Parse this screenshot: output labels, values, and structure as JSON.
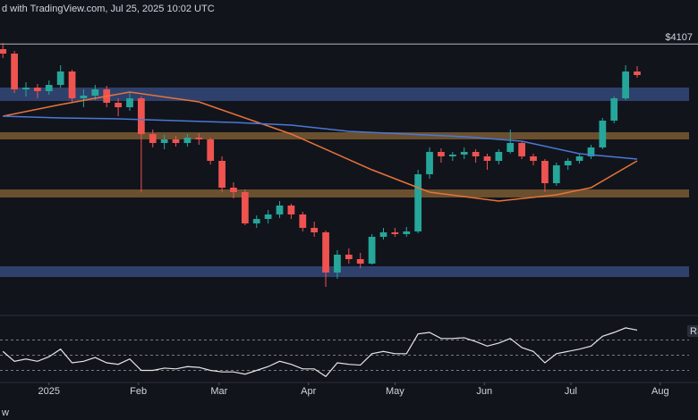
{
  "chart_data": {
    "type": "candlestick",
    "header": "d with TradingView.com, Jul 25, 2025 10:02 UTC",
    "footer": "w",
    "up_color": "#26a69a",
    "down_color": "#ef5350",
    "x": [
      -16,
      -12,
      -8,
      -4,
      0,
      4,
      8,
      12,
      16,
      20,
      24,
      28,
      32,
      36,
      40,
      44,
      48,
      52,
      56,
      60,
      64,
      68,
      72,
      76,
      80,
      84,
      88,
      92,
      96,
      100,
      104,
      108,
      112,
      116,
      120,
      124,
      128,
      132,
      136,
      140,
      144,
      148,
      152,
      156,
      160,
      164,
      168,
      172,
      176,
      180,
      184,
      188,
      192,
      196,
      200,
      204
    ],
    "candles": [
      [
        4050,
        4120,
        3950,
        4000
      ],
      [
        4000,
        4030,
        3560,
        3600
      ],
      [
        3600,
        3680,
        3520,
        3620
      ],
      [
        3620,
        3660,
        3500,
        3580
      ],
      [
        3580,
        3700,
        3540,
        3650
      ],
      [
        3650,
        3870,
        3620,
        3800
      ],
      [
        3800,
        3820,
        3450,
        3500
      ],
      [
        3500,
        3600,
        3400,
        3530
      ],
      [
        3530,
        3650,
        3480,
        3600
      ],
      [
        3600,
        3640,
        3400,
        3450
      ],
      [
        3450,
        3500,
        3300,
        3400
      ],
      [
        3400,
        3560,
        3360,
        3500
      ],
      [
        3500,
        3520,
        2450,
        3100
      ],
      [
        3100,
        3150,
        2950,
        3000
      ],
      [
        3000,
        3090,
        2930,
        3040
      ],
      [
        3040,
        3080,
        2960,
        3000
      ],
      [
        3000,
        3100,
        2960,
        3060
      ],
      [
        3060,
        3110,
        2980,
        3040
      ],
      [
        3040,
        3060,
        2760,
        2800
      ],
      [
        2800,
        2850,
        2450,
        2500
      ],
      [
        2500,
        2560,
        2380,
        2450
      ],
      [
        2450,
        2480,
        2080,
        2100
      ],
      [
        2100,
        2190,
        2050,
        2150
      ],
      [
        2150,
        2250,
        2100,
        2200
      ],
      [
        2200,
        2350,
        2160,
        2300
      ],
      [
        2300,
        2320,
        2150,
        2200
      ],
      [
        2200,
        2230,
        2010,
        2050
      ],
      [
        2050,
        2120,
        1950,
        2000
      ],
      [
        2000,
        2020,
        1390,
        1550
      ],
      [
        1550,
        1800,
        1480,
        1750
      ],
      [
        1750,
        1820,
        1650,
        1700
      ],
      [
        1700,
        1770,
        1600,
        1650
      ],
      [
        1650,
        1980,
        1640,
        1950
      ],
      [
        1950,
        2050,
        1920,
        2000
      ],
      [
        2000,
        2050,
        1950,
        1980
      ],
      [
        1980,
        2060,
        1950,
        2010
      ],
      [
        2010,
        2700,
        1990,
        2650
      ],
      [
        2650,
        2950,
        2600,
        2900
      ],
      [
        2900,
        2940,
        2780,
        2850
      ],
      [
        2850,
        2900,
        2800,
        2870
      ],
      [
        2870,
        2950,
        2820,
        2900
      ],
      [
        2900,
        2930,
        2780,
        2850
      ],
      [
        2850,
        2880,
        2700,
        2800
      ],
      [
        2800,
        2930,
        2760,
        2900
      ],
      [
        2900,
        3150,
        2880,
        3000
      ],
      [
        3000,
        3020,
        2820,
        2850
      ],
      [
        2850,
        2880,
        2750,
        2800
      ],
      [
        2800,
        2820,
        2450,
        2550
      ],
      [
        2550,
        2780,
        2520,
        2750
      ],
      [
        2750,
        2830,
        2700,
        2800
      ],
      [
        2800,
        2880,
        2770,
        2850
      ],
      [
        2850,
        2980,
        2820,
        2950
      ],
      [
        2950,
        3280,
        2930,
        3250
      ],
      [
        3250,
        3520,
        3220,
        3500
      ],
      [
        3500,
        3870,
        3480,
        3800
      ],
      [
        3800,
        3860,
        3730,
        3760
      ]
    ],
    "xlim": [
      -17,
      222
    ],
    "xticks": [
      {
        "value": 0,
        "label": "2025"
      },
      {
        "value": 31,
        "label": "Feb"
      },
      {
        "value": 59,
        "label": "Mar"
      },
      {
        "value": 90,
        "label": "Apr"
      },
      {
        "value": 120,
        "label": "May"
      },
      {
        "value": 151,
        "label": "Jun"
      },
      {
        "value": 181,
        "label": "Jul"
      },
      {
        "value": 212,
        "label": "Aug"
      }
    ],
    "ylim": [
      1200,
      4400
    ],
    "level": {
      "value": 4107,
      "label": "$4107"
    },
    "zones": [
      {
        "from": 3470,
        "to": 3620,
        "color": "#34497a"
      },
      {
        "from": 3040,
        "to": 3120,
        "color": "#7a5a32"
      },
      {
        "from": 2390,
        "to": 2480,
        "color": "#7a5a32"
      },
      {
        "from": 1500,
        "to": 1620,
        "color": "#34497a"
      }
    ],
    "overlays": [
      {
        "color": "#e8733a",
        "x": [
          -16,
          4,
          28,
          52,
          84,
          112,
          132,
          156,
          176,
          188,
          204
        ],
        "values": [
          3300,
          3430,
          3570,
          3460,
          3100,
          2700,
          2450,
          2350,
          2420,
          2500,
          2800
        ]
      },
      {
        "color": "#4a78d8",
        "x": [
          -16,
          4,
          24,
          44,
          64,
          84,
          104,
          124,
          144,
          164,
          184,
          204
        ],
        "values": [
          3300,
          3280,
          3270,
          3250,
          3230,
          3200,
          3130,
          3100,
          3070,
          3020,
          2880,
          2820
        ]
      }
    ],
    "rsi": {
      "label": "RS",
      "color": "#e6e6e6",
      "ylim": [
        0,
        100
      ],
      "levels": [
        70,
        50,
        30
      ],
      "values": [
        55,
        42,
        45,
        42,
        48,
        58,
        40,
        42,
        47,
        40,
        38,
        45,
        30,
        30,
        33,
        32,
        35,
        34,
        30,
        28,
        28,
        25,
        30,
        35,
        42,
        38,
        32,
        32,
        22,
        40,
        38,
        37,
        52,
        55,
        52,
        52,
        78,
        80,
        72,
        72,
        73,
        68,
        62,
        66,
        72,
        60,
        55,
        40,
        52,
        55,
        58,
        62,
        75,
        80,
        86,
        83
      ]
    }
  }
}
